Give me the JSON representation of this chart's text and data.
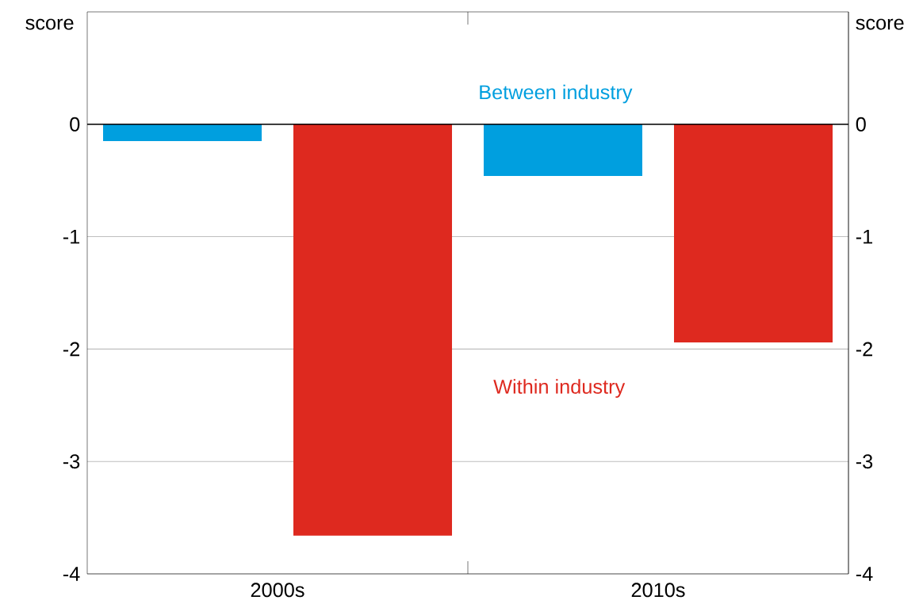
{
  "chart_data": {
    "type": "bar",
    "ylabel": "score",
    "y2label": "score",
    "categories": [
      "2000s",
      "2010s"
    ],
    "series": [
      {
        "name": "Between industry",
        "color": "#009fdf",
        "values": [
          -0.15,
          -0.46
        ]
      },
      {
        "name": "Within industry",
        "color": "#de291f",
        "values": [
          -3.66,
          -1.94
        ]
      }
    ],
    "ylim": [
      -4,
      1
    ],
    "yticks": [
      -4,
      -3,
      -2,
      -1,
      0
    ],
    "y2lim": [
      -4,
      1
    ],
    "y2ticks": [
      -4,
      -3,
      -2,
      -1,
      0
    ],
    "grid": "y"
  }
}
